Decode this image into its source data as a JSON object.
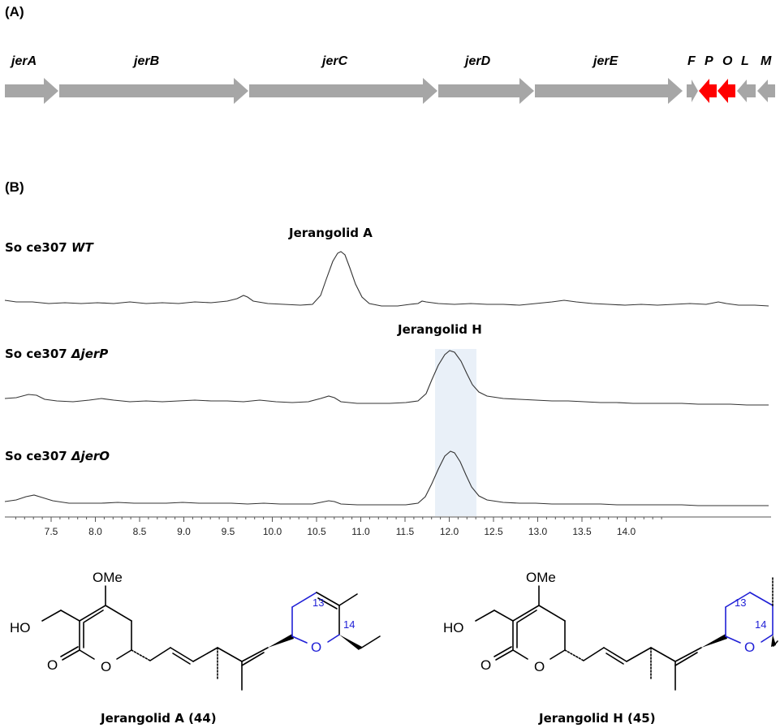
{
  "panel_a": {
    "label": "(A)",
    "genes": [
      {
        "name": "jerA",
        "color": "#a6a6a6"
      },
      {
        "name": "jerB",
        "color": "#a6a6a6"
      },
      {
        "name": "jerC",
        "color": "#a6a6a6"
      },
      {
        "name": "jerD",
        "color": "#a6a6a6"
      },
      {
        "name": "jerE",
        "color": "#a6a6a6"
      },
      {
        "name": "F",
        "color": "#a6a6a6"
      },
      {
        "name": "P",
        "color": "#ff0000"
      },
      {
        "name": "O",
        "color": "#ff0000"
      },
      {
        "name": "L",
        "color": "#a6a6a6"
      },
      {
        "name": "M",
        "color": "#a6a6a6"
      }
    ]
  },
  "panel_b": {
    "label": "(B)",
    "traces": [
      {
        "prefix": "So ce307 ",
        "strain": "WT",
        "peak_label": "Jerangolid A"
      },
      {
        "prefix": "So ce307 ",
        "strain": "ΔjerP",
        "peak_label": "Jerangolid H"
      },
      {
        "prefix": "So ce307 ",
        "strain": "ΔjerO",
        "peak_label": ""
      }
    ],
    "axis_ticks": [
      "7.5",
      "8.0",
      "8.5",
      "9.0",
      "9.5",
      "10.0",
      "10.5",
      "11.0",
      "11.5",
      "12.0",
      "12.5",
      "13.0",
      "13.5",
      "14.0"
    ],
    "highlight_color": "#e9f0f8"
  },
  "structures": {
    "atoms": {
      "methoxy": "OMe",
      "hydroxyl": "HO",
      "oxygen": "O",
      "c13": "13",
      "c14": "14"
    },
    "compounds": [
      {
        "name": "Jerangolid A (44)"
      },
      {
        "name": "Jerangolid H (45)"
      }
    ],
    "ring_color": "#1f1fd6"
  }
}
